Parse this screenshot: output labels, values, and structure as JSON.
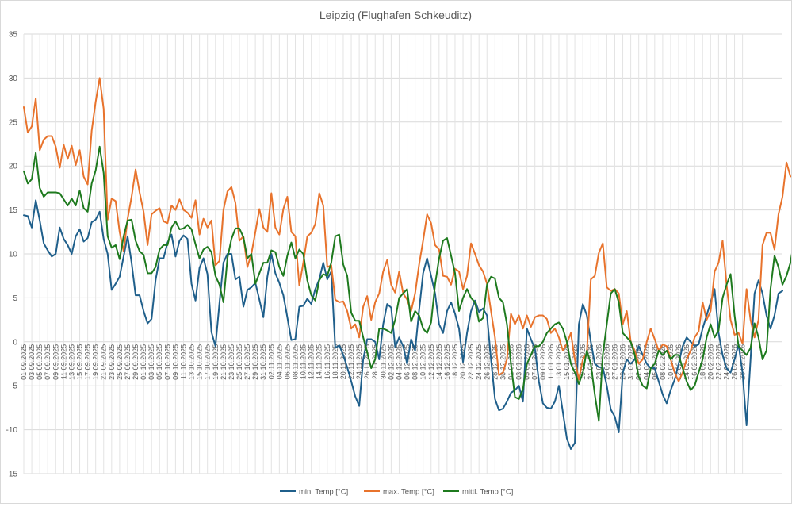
{
  "chart_data": {
    "type": "line",
    "title": "Leipzig (Flughafen Schkeuditz)",
    "xlabel": "",
    "ylabel": "",
    "ylim": [
      -15,
      35
    ],
    "y_ticks": [
      35,
      30,
      25,
      20,
      15,
      10,
      5,
      0,
      -5,
      -10,
      -15
    ],
    "grid": "on",
    "legend_position": "bottom",
    "x_tick_labels": [
      "01.09.2025",
      "03.09.2025",
      "05.09.2025",
      "07.09.2025",
      "09.09.2025",
      "11.09.2025",
      "13.09.2025",
      "15.09.2025",
      "17.09.2025",
      "19.09.2025",
      "21.09.2025",
      "23.09.2025",
      "25.09.2025",
      "27.09.2025",
      "29.09.2025",
      "01.10.2025",
      "03.10.2025",
      "05.10.2025",
      "07.10.2025",
      "09.10.2025",
      "11.10.2025",
      "13.10.2025",
      "15.10.2025",
      "17.10.2025",
      "19.10.2025",
      "21.10.2025",
      "23.10.2025",
      "25.10.2025",
      "27.10.2025",
      "29.10.2025",
      "31.10.2025",
      "02.11.2025",
      "04.11.2025",
      "06.11.2025",
      "08.11.2025",
      "10.11.2025",
      "12.11.2025",
      "14.11.2025",
      "16.11.2025",
      "18.11.2025",
      "20.11.2025",
      "22.11.2025",
      "24.11.2025",
      "26.11.2025",
      "28.11.2025",
      "30.11.2025",
      "02.12.2025",
      "04.12.2025",
      "06.12.2025",
      "08.12.2025",
      "10.12.2025",
      "12.12.2025",
      "14.12.2025",
      "16.12.2025",
      "18.12.2025",
      "20.12.2025",
      "22.12.2025",
      "24.12.2025",
      "26.12.2025",
      "28.12.2025",
      "30.12.2025",
      "01.01.2026",
      "03.01.2026",
      "05.01.2026",
      "07.01.2026",
      "09.01.2026",
      "11.01.2026",
      "13.01.2026",
      "15.01.2026",
      "17.01.2026",
      "19.01.2026",
      "21.01.2026",
      "23.01.2026",
      "25.01.2026",
      "27.01.2026",
      "29.01.2026",
      "31.01.2026",
      "02.02.2026",
      "04.02.2026",
      "06.02.2026",
      "08.02.2026",
      "10.02.2026",
      "12.02.2026",
      "14.02.2026",
      "16.02.2026",
      "18.02.2026",
      "20.02.2026",
      "22.02.2026",
      "24.02.2026",
      "26.02.2026",
      "28.02.2026"
    ],
    "series": [
      {
        "name": "min. Temp [°C]",
        "color": "#1f5f8b",
        "values": [
          14.4,
          14.3,
          13,
          16.1,
          13.8,
          11.2,
          10.4,
          9.7,
          10,
          13,
          11.7,
          11,
          10,
          12,
          12.8,
          11.4,
          11.8,
          13.6,
          13.9,
          14.8,
          11.7,
          10,
          5.9,
          6.6,
          7.4,
          9.7,
          12,
          9,
          5.3,
          5.3,
          3.5,
          2.1,
          2.6,
          7,
          9.5,
          9.5,
          11.3,
          12.2,
          9.7,
          11.5,
          12.1,
          11.7,
          6.6,
          4.7,
          8.4,
          9.5,
          7.7,
          1.1,
          -0.5,
          4.4,
          9,
          10,
          10,
          7.1,
          7.4,
          4,
          5.9,
          6.2,
          6.7,
          4.8,
          2.8,
          7.4,
          10,
          7.8,
          6.7,
          5.3,
          2.8,
          0.2,
          0.3,
          4,
          4.1,
          4.9,
          4.3,
          6,
          7.1,
          9,
          7.1,
          8,
          -0.7,
          -0.4,
          -1.5,
          -2.9,
          -4.5,
          -6.2,
          -7.3,
          -2,
          0.3,
          0.3,
          0,
          -2,
          2,
          4.3,
          3.9,
          -0.6,
          0.5,
          -0.5,
          -2.5,
          0.3,
          -1,
          3.6,
          7.8,
          9.5,
          7.5,
          5.5,
          2,
          1,
          3.5,
          4.5,
          3.2,
          1.5,
          -2.3,
          1,
          3.5,
          4.7,
          3.4,
          3.8,
          3,
          -2,
          -6.5,
          -7.8,
          -7.6,
          -6.8,
          -5.8,
          -5.5,
          -5,
          -6.8,
          1.5,
          0.3,
          -0.8,
          -4.5,
          -7,
          -7.5,
          -7.6,
          -6.8,
          -5,
          -8,
          -11,
          -12.2,
          -11.5,
          2,
          4.3,
          3,
          0,
          -2.5,
          -2.9,
          -2.9,
          -5,
          -7.7,
          -8.5,
          -10.3,
          -3.5,
          -2,
          -2.5,
          -2,
          -0.5,
          -1.5,
          -2.5,
          -3,
          -3,
          -4.5,
          -6,
          -7,
          -5.5,
          -4.3,
          -2.5,
          -0.5,
          0.5,
          0,
          -0.5,
          -0.3,
          1.5,
          3,
          4.5,
          6,
          1,
          -1.5,
          -3,
          -3.5,
          -2,
          -0.3,
          -3.5,
          -9.5,
          -2,
          5.5,
          7,
          5.5,
          3,
          1.5,
          3,
          5.5,
          5.8
        ]
      },
      {
        "name": "max. Temp [°C]",
        "color": "#e8732c",
        "values": [
          26.7,
          23.8,
          24.5,
          27.7,
          21.8,
          23,
          23.4,
          23.4,
          22.2,
          19.8,
          22.4,
          20.8,
          22.3,
          20.1,
          21.8,
          18.8,
          17.9,
          24,
          27.3,
          30,
          26.5,
          13.9,
          16.3,
          16,
          12.5,
          10.3,
          14,
          16.5,
          19.6,
          17,
          14.8,
          11,
          14.5,
          14.9,
          15.2,
          13.7,
          13.5,
          15.5,
          15,
          16.2,
          15,
          14.7,
          14.1,
          16.1,
          12.2,
          14,
          13,
          13.8,
          8.7,
          9.2,
          15,
          17.1,
          17.6,
          15.8,
          11.5,
          12,
          8.5,
          10,
          12.5,
          15.1,
          13,
          12.5,
          16.9,
          13,
          12.2,
          15.1,
          16.5,
          12.5,
          12,
          6.4,
          9,
          12,
          12.4,
          13.4,
          16.9,
          15.5,
          8.5,
          8.7,
          4.8,
          4.5,
          4.6,
          3.5,
          1.5,
          2,
          0.5,
          4,
          5.2,
          2.5,
          4.5,
          5.5,
          8,
          9.3,
          6.5,
          5.6,
          8,
          5.5,
          4.8,
          3.5,
          5.5,
          8.8,
          11.5,
          14.5,
          13.5,
          11,
          10.5,
          7.5,
          7.4,
          6.5,
          8.3,
          8,
          6,
          7.5,
          11.2,
          10,
          8.7,
          8,
          6.6,
          3.5,
          0.5,
          -3.8,
          -3.5,
          -2,
          3.2,
          2,
          3,
          1.5,
          3,
          1.7,
          2.8,
          3,
          3,
          2.6,
          1,
          1.5,
          0.5,
          -1,
          -0.2,
          1,
          -2,
          -4.3,
          -2,
          -1.3,
          7.1,
          7.5,
          10.1,
          11.2,
          6.2,
          5.8,
          6,
          5.5,
          2,
          3.5,
          0,
          -1,
          -2.5,
          -2,
          0,
          1.5,
          0.3,
          -1,
          -0.3,
          -0.5,
          -2,
          -3.5,
          -4.5,
          -3.5,
          -2,
          -1,
          0.5,
          1.2,
          4.5,
          2.5,
          3.5,
          8,
          9,
          11.5,
          6.5,
          2.5,
          0.8,
          1,
          -0.2,
          6,
          2.5,
          0.5,
          2.5,
          11,
          12.4,
          12.4,
          10.5,
          14.5,
          16.5,
          20.4,
          18.8
        ]
      },
      {
        "name": "mittl. Temp [°C]",
        "color": "#1e7a1e",
        "values": [
          19.4,
          18,
          18.5,
          21.5,
          17.5,
          16.5,
          17,
          17,
          17,
          16.9,
          16.2,
          15.5,
          16.3,
          15.5,
          17.2,
          15.2,
          14.8,
          18,
          19.5,
          22.2,
          19.2,
          12,
          10.7,
          11,
          9.4,
          12,
          13.8,
          13.9,
          11.5,
          10.3,
          9.9,
          7.8,
          7.8,
          8.5,
          10.5,
          11,
          11,
          13,
          13.7,
          12.8,
          12.9,
          13.3,
          12.8,
          11.1,
          9.5,
          10.5,
          10.8,
          10.2,
          7.5,
          6.5,
          4.5,
          9.5,
          11.7,
          12.9,
          12.9,
          11.9,
          9.5,
          10,
          6.6,
          7.8,
          9,
          9,
          10.4,
          10.2,
          8.5,
          7.5,
          9.8,
          11.3,
          9.5,
          10.5,
          10,
          7,
          5.3,
          4.7,
          7,
          7.7,
          7.5,
          9,
          12,
          12.2,
          8.8,
          7.5,
          3.3,
          2.4,
          2.4,
          0.5,
          -1.2,
          -3,
          -2,
          1.5,
          1.5,
          1.3,
          1,
          2.5,
          5,
          5.5,
          6,
          2.3,
          3.5,
          3,
          1.5,
          1,
          2.2,
          6.5,
          9.5,
          11.5,
          11.8,
          9.8,
          7.8,
          3.5,
          5,
          6,
          5,
          4.5,
          2.3,
          2.7,
          6.5,
          7.4,
          7.2,
          5,
          4.5,
          2,
          -2.5,
          -6.3,
          -6.5,
          -5.4,
          -2.5,
          -1.5,
          -0.5,
          -0.5,
          0,
          1,
          1.5,
          2,
          2.2,
          1.5,
          0,
          -2.5,
          -3.5,
          -4.8,
          -3.5,
          -1,
          -2.5,
          -6,
          -9,
          -1.5,
          2,
          5.5,
          6,
          4.5,
          1,
          0.5,
          0,
          -1.5,
          -4,
          -5,
          -5.3,
          -3,
          -2.5,
          -1,
          -1.5,
          -1,
          -2,
          -1.5,
          -1.5,
          -3,
          -4.5,
          -5.5,
          -5,
          -3.5,
          -2,
          0.5,
          2,
          0.5,
          1.3,
          5,
          6.5,
          7.7,
          3,
          -0.5,
          -1,
          -1.5,
          -0.7,
          2.1,
          0.5,
          -2,
          -1,
          6,
          9.8,
          8.5,
          6.5,
          7.5,
          9,
          11.8,
          11.5
        ]
      }
    ]
  }
}
